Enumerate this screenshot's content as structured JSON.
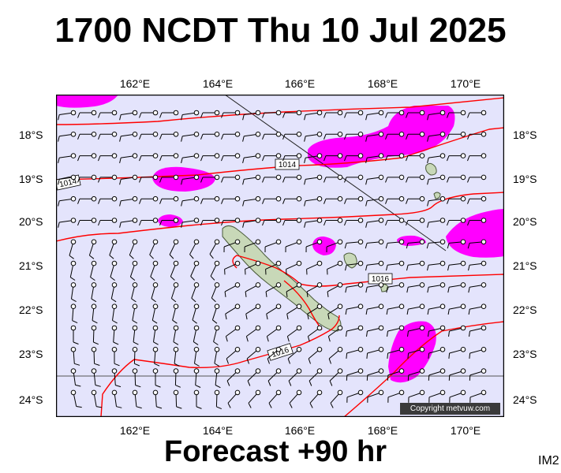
{
  "header": {
    "title": "1700 NCDT Thu 10 Jul 2025"
  },
  "footer": {
    "forecast": "Forecast +90 hr",
    "tag": "IM2",
    "copyright": "Copyright metvuw.com"
  },
  "axes": {
    "lon_labels": [
      "162°E",
      "164°E",
      "166°E",
      "168°E",
      "170°E"
    ],
    "lat_labels": [
      "18°S",
      "19°S",
      "20°S",
      "21°S",
      "22°S",
      "23°S",
      "24°S"
    ]
  },
  "isobars": {
    "labels": [
      "1014",
      "1014",
      "1016",
      "1016"
    ]
  },
  "colors": {
    "sea": "#e4e4fc",
    "rain": "#ff00ff",
    "isobar": "#ff0000",
    "land": "#c8d8b8"
  }
}
